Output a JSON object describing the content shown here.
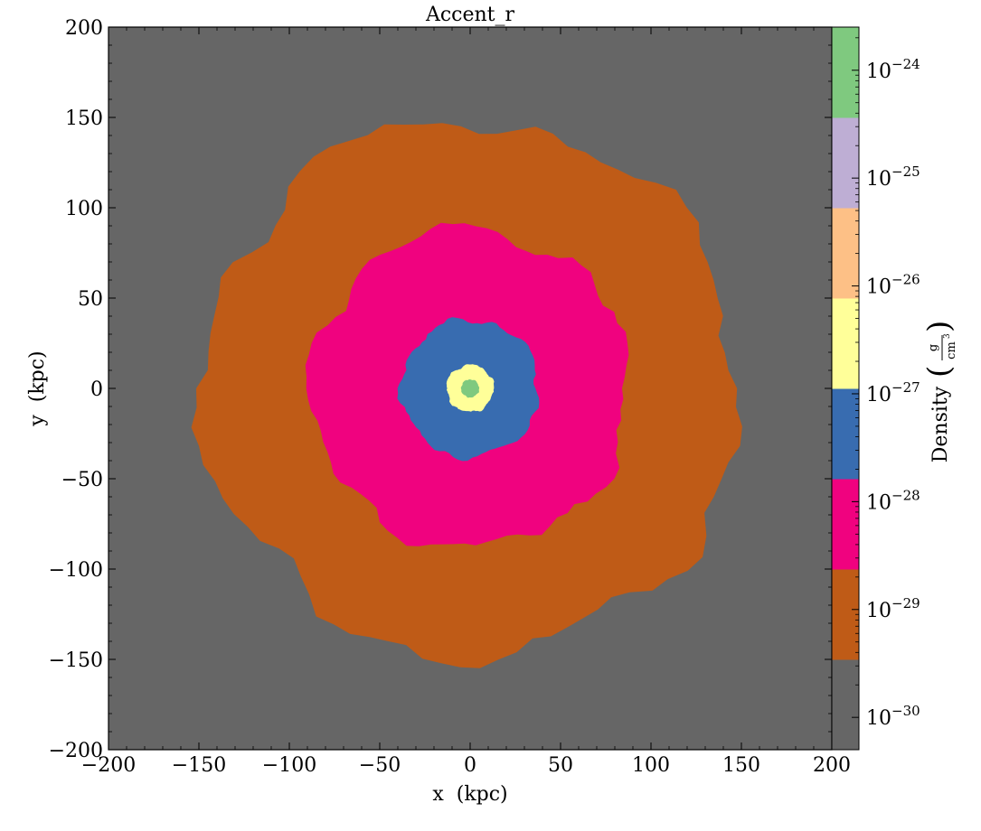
{
  "chart_data": {
    "type": "heatmap",
    "title": "Accent_r",
    "xlabel": "x  (kpc)",
    "ylabel": "y  (kpc)",
    "xlim": [
      -200,
      200
    ],
    "ylim": [
      -200,
      200
    ],
    "xticks": [
      -200,
      -150,
      -100,
      -50,
      0,
      50,
      100,
      150,
      200
    ],
    "yticks": [
      -200,
      -150,
      -100,
      -50,
      0,
      50,
      100,
      150,
      200
    ],
    "xtick_labels": [
      "−200",
      "−150",
      "−100",
      "−50",
      "0",
      "50",
      "100",
      "150",
      "200"
    ],
    "ytick_labels": [
      "−200",
      "−150",
      "−100",
      "−50",
      "0",
      "50",
      "100",
      "150",
      "200"
    ],
    "background_color": "#666666",
    "regions": [
      {
        "level": "outer shell",
        "color": "#bf5b17",
        "radius_kpc": 148
      },
      {
        "level": "middle shell",
        "color": "#f0027f",
        "radius_kpc": 88
      },
      {
        "level": "inner shell",
        "color": "#386cb0",
        "radius_kpc": 38
      },
      {
        "level": "core",
        "color": "#ffff99",
        "radius_kpc": 13
      },
      {
        "level": "center",
        "color": "#7fc97f",
        "radius_kpc": 5
      }
    ],
    "colorbar": {
      "label": "Density",
      "unit_numerator": "g",
      "unit_denominator": "cm",
      "unit_power": "3",
      "scale": "log",
      "range_exp": [
        -30.3,
        -23.6
      ],
      "bands": [
        {
          "color": "#666666"
        },
        {
          "color": "#bf5b17"
        },
        {
          "color": "#f0027f"
        },
        {
          "color": "#386cb0"
        },
        {
          "color": "#ffff99"
        },
        {
          "color": "#fdc086"
        },
        {
          "color": "#beaed4"
        },
        {
          "color": "#7fc97f"
        }
      ],
      "ticks": [
        {
          "exp": -30,
          "base": "10",
          "power": "−30"
        },
        {
          "exp": -29,
          "base": "10",
          "power": "−29"
        },
        {
          "exp": -28,
          "base": "10",
          "power": "−28"
        },
        {
          "exp": -27,
          "base": "10",
          "power": "−27"
        },
        {
          "exp": -26,
          "base": "10",
          "power": "−26"
        },
        {
          "exp": -25,
          "base": "10",
          "power": "−25"
        },
        {
          "exp": -24,
          "base": "10",
          "power": "−24"
        }
      ]
    }
  }
}
